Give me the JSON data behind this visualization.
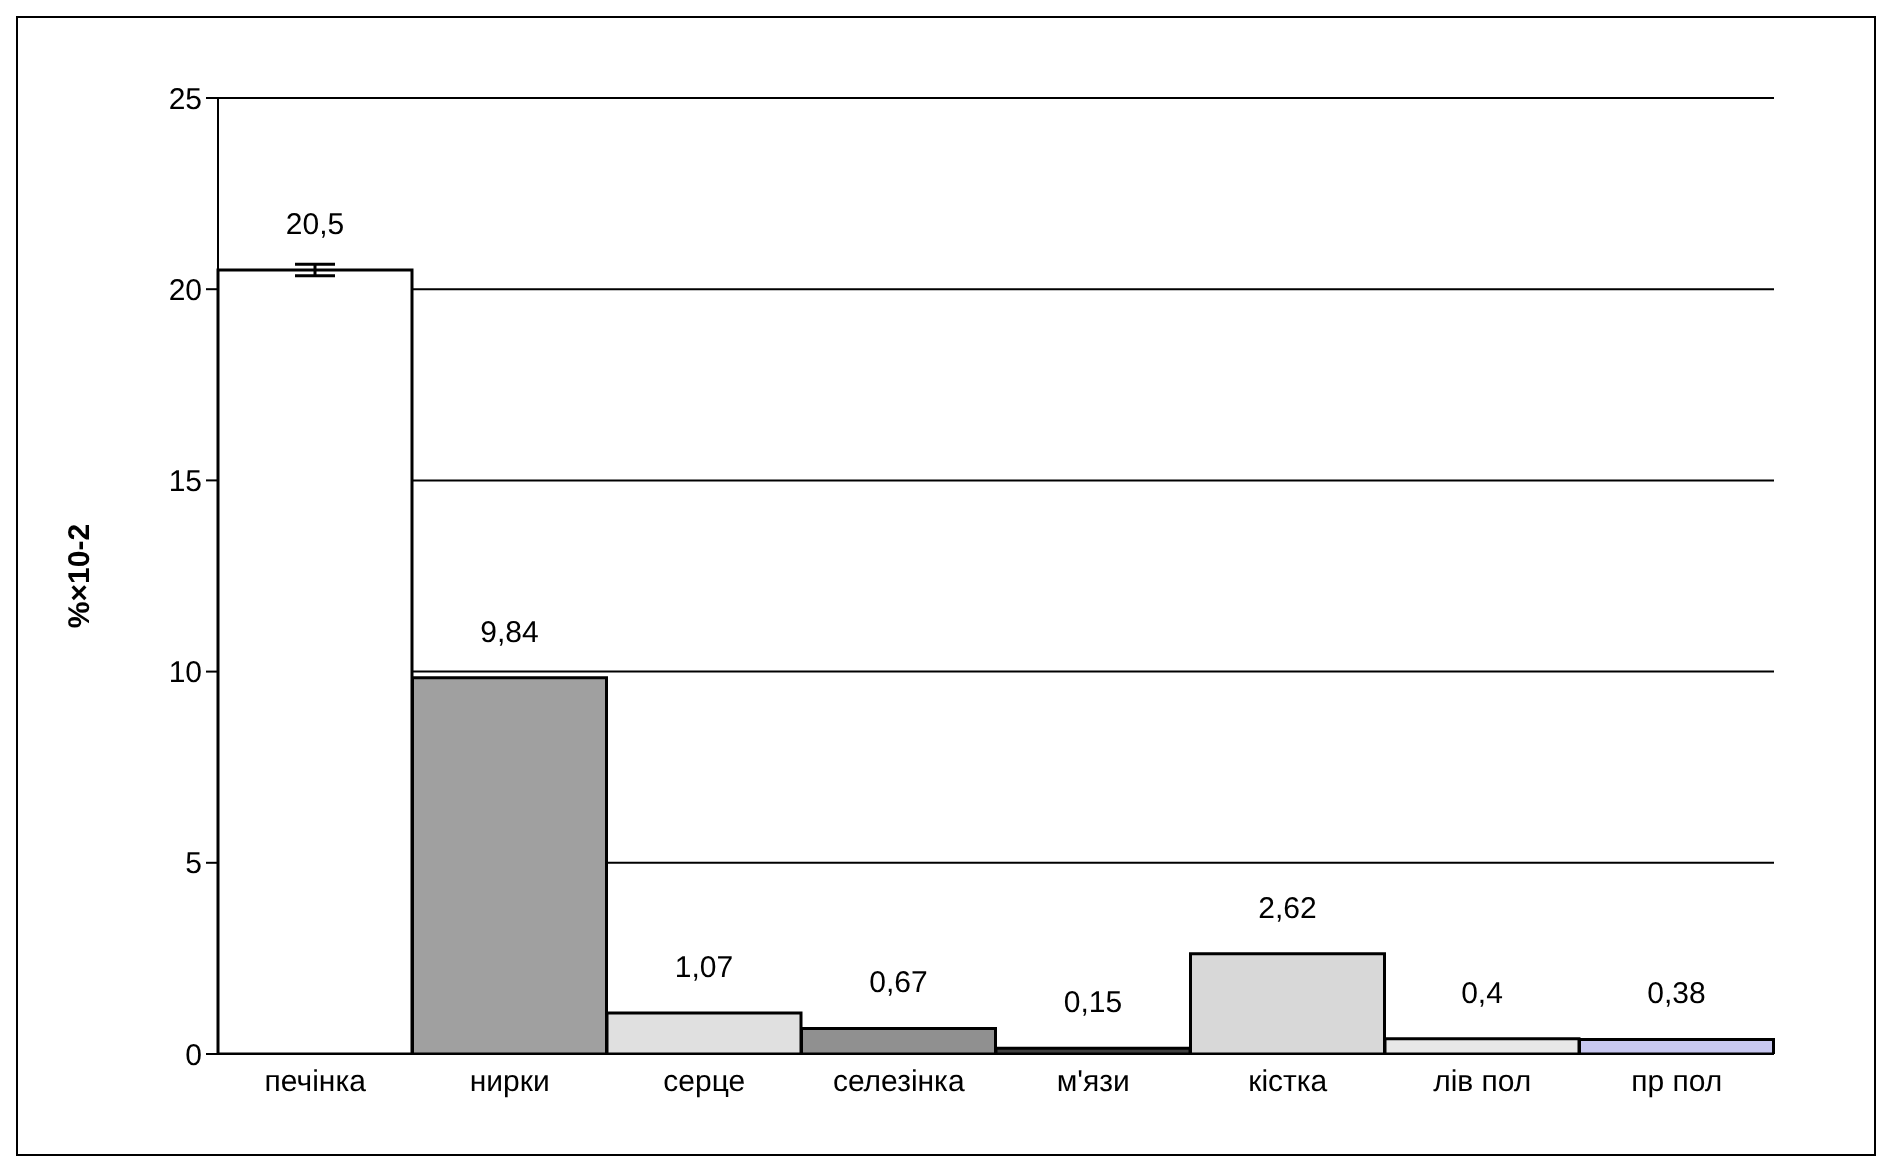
{
  "chart_data": {
    "type": "bar",
    "ylabel": "%×10-2",
    "categories": [
      "печінка",
      "нирки",
      "серце",
      "селезінка",
      "м'язи",
      "кістка",
      "лів пол",
      "пр пол"
    ],
    "values": [
      20.5,
      9.84,
      1.07,
      0.67,
      0.15,
      2.62,
      0.4,
      0.38
    ],
    "value_labels": [
      "20,5",
      "9,84",
      "1,07",
      "0,67",
      "0,15",
      "2,62",
      "0,4",
      "0,38"
    ],
    "errors": [
      0.15,
      null,
      null,
      null,
      null,
      null,
      null,
      null
    ],
    "colors": [
      "#ffffff",
      "#a0a0a0",
      "#e0e0e0",
      "#909090",
      "#404040",
      "#d8d8d8",
      "#e8e8e8",
      "#c8c8f0"
    ],
    "ylim": [
      0,
      25
    ],
    "yticks": [
      0,
      5,
      10,
      15,
      20,
      25
    ],
    "grid": "y",
    "legend": false
  }
}
